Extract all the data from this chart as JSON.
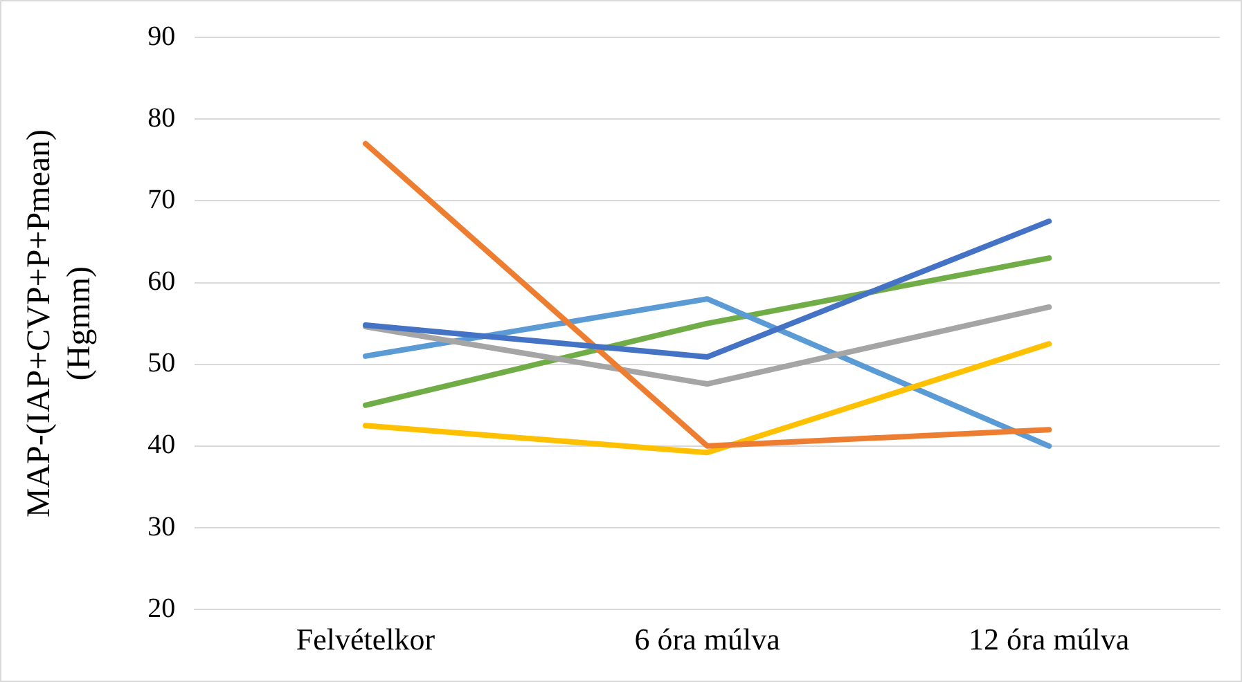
{
  "chart_data": {
    "type": "line",
    "ylabel": "MAP-(IAP+CVP+P+Pmean) (Hgmm)",
    "categories": [
      "Felvételkor",
      "6 óra múlva",
      "12 óra múlva"
    ],
    "series": [
      {
        "color": "#4472c4",
        "values": [
          54.8,
          50.9,
          67.5
        ]
      },
      {
        "color": "#ed7d31",
        "values": [
          77,
          40,
          42
        ]
      },
      {
        "color": "#a5a5a5",
        "values": [
          54.6,
          47.6,
          57
        ]
      },
      {
        "color": "#ffc000",
        "values": [
          42.5,
          39.2,
          52.5
        ]
      },
      {
        "color": "#5b9bd5",
        "values": [
          51,
          58,
          40
        ]
      },
      {
        "color": "#70ad47",
        "values": [
          45,
          55,
          63
        ]
      }
    ],
    "ylim": [
      20,
      90
    ],
    "yticks": [
      20,
      30,
      40,
      50,
      60,
      70,
      80,
      90
    ],
    "grid": "y",
    "legend": false,
    "marker": "none",
    "line_style": "solid"
  }
}
